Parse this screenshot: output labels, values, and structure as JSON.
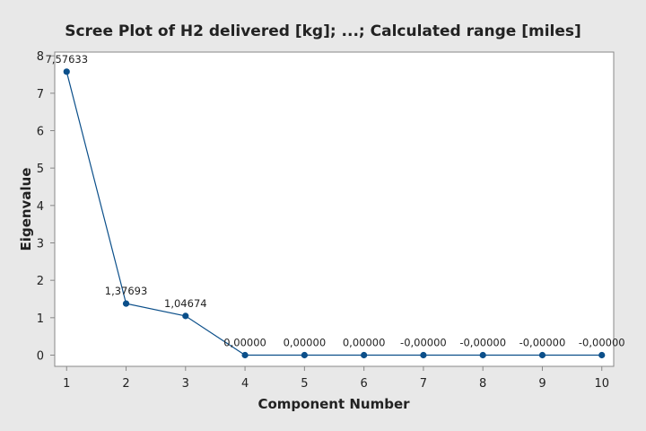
{
  "chart_data": {
    "type": "line",
    "title": "Scree Plot of H2 delivered [kg]; ...; Calculated range [miles]",
    "xlabel": "Component Number",
    "ylabel": "Eigenvalue",
    "x": [
      1,
      2,
      3,
      4,
      5,
      6,
      7,
      8,
      9,
      10
    ],
    "xlim": [
      0.8,
      10.2
    ],
    "ylim": [
      -0.3,
      8.1
    ],
    "xticks": [
      1,
      2,
      3,
      4,
      5,
      6,
      7,
      8,
      9,
      10
    ],
    "yticks": [
      0,
      1,
      2,
      3,
      4,
      5,
      6,
      7,
      8
    ],
    "grid": false,
    "series": [
      {
        "values": [
          7.57633,
          1.37693,
          1.04674,
          0,
          0,
          0,
          0,
          0,
          0,
          0
        ],
        "labels": [
          "7,57633",
          "1,37693",
          "1,04674",
          "0,00000",
          "0,00000",
          "0,00000",
          "-0,00000",
          "-0,00000",
          "-0,00000",
          "-0,00000"
        ],
        "color": "#0b4f8a"
      }
    ]
  },
  "colors": {
    "background": "#e8e8e8",
    "plot_background": "#ffffff",
    "axis": "#888888",
    "series": "#0b4f8a"
  }
}
